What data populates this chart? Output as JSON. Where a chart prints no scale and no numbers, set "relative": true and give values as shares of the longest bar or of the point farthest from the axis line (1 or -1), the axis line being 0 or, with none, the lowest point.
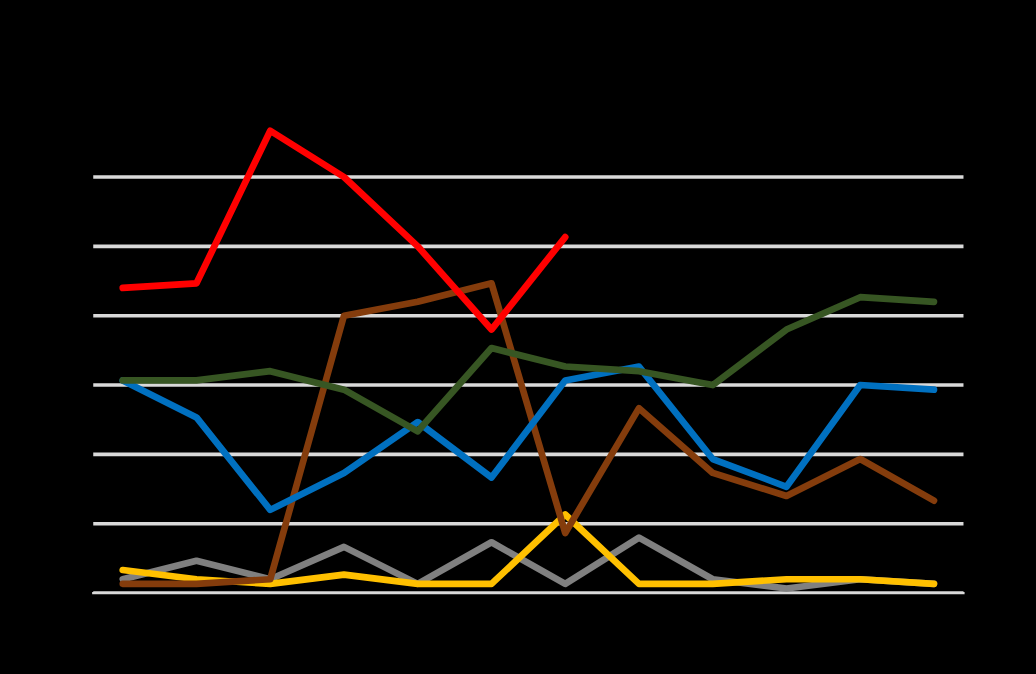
{
  "chart_data": {
    "type": "line",
    "relative": true,
    "grid": "y",
    "marker": "none",
    "line_style": "solid",
    "categories": [
      null,
      null,
      null,
      null,
      null,
      null,
      null,
      null,
      null,
      null,
      null,
      null
    ],
    "series": [
      {
        "color": "#808080",
        "values": [
          0.03,
          0.07,
          0.03,
          0.1,
          0.02,
          0.11,
          0.02,
          0.12,
          0.03,
          0.01,
          0.03,
          0.02
        ]
      },
      {
        "color": "#ffc000",
        "values": [
          0.05,
          0.03,
          0.02,
          0.04,
          0.02,
          0.02,
          0.17,
          0.02,
          0.02,
          0.03,
          0.03,
          0.02
        ]
      },
      {
        "color": "#843c0c",
        "values": [
          0.02,
          0.02,
          0.03,
          0.6,
          0.63,
          0.67,
          0.13,
          0.4,
          0.26,
          0.21,
          0.29,
          0.2
        ]
      },
      {
        "color": "#0070c0",
        "values": [
          0.46,
          0.38,
          0.18,
          0.26,
          0.37,
          0.25,
          0.46,
          0.49,
          0.29,
          0.23,
          0.45,
          0.44
        ]
      },
      {
        "color": "#375623",
        "values": [
          0.46,
          0.46,
          0.48,
          0.44,
          0.35,
          0.53,
          0.49,
          0.48,
          0.45,
          0.57,
          0.64,
          0.63
        ]
      },
      {
        "color": "#ff0000",
        "values": [
          0.66,
          0.67,
          1,
          0.9,
          0.75,
          0.57,
          0.77,
          null,
          null,
          null,
          null,
          null
        ]
      }
    ]
  }
}
